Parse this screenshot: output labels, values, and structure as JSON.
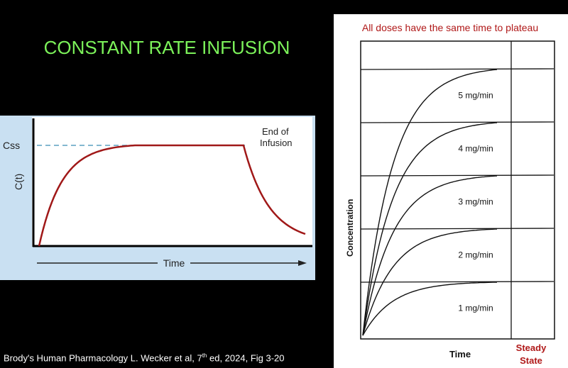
{
  "slide": {
    "title": "CONSTANT RATE INFUSION",
    "footer_main": "Brody's Human Pharmacology  L. Wecker et al, 7",
    "footer_sup": "th",
    "footer_rest": " ed, 2024, Fig 3-20"
  },
  "colors": {
    "title": "#7cf25a",
    "curve_left": "#a01818",
    "dash": "#5aa0c0",
    "panel_left": "#c9e0f2",
    "accent_red": "#b01818"
  },
  "chart_data": [
    {
      "type": "line",
      "xlabel": "Time",
      "ylabel": "C(t)",
      "y_marker_label": "Css",
      "annotation": "End of\nInfusion",
      "annotation_lines": [
        "End of",
        "Infusion"
      ],
      "phases": [
        "rise to plateau",
        "plateau at Css",
        "decline after end of infusion"
      ],
      "grid": false
    },
    {
      "type": "line",
      "title": "All doses have the same time to plateau",
      "xlabel": "Time",
      "ylabel": "Concentration",
      "x_marker_label": "Steady State",
      "x_marker_lines": [
        "Steady",
        "State"
      ],
      "series": [
        {
          "name": "1 mg/min",
          "plateau": 1
        },
        {
          "name": "2 mg/min",
          "plateau": 2
        },
        {
          "name": "3 mg/min",
          "plateau": 3
        },
        {
          "name": "4 mg/min",
          "plateau": 4
        },
        {
          "name": "5 mg/min",
          "plateau": 5
        }
      ],
      "grid": true
    }
  ]
}
